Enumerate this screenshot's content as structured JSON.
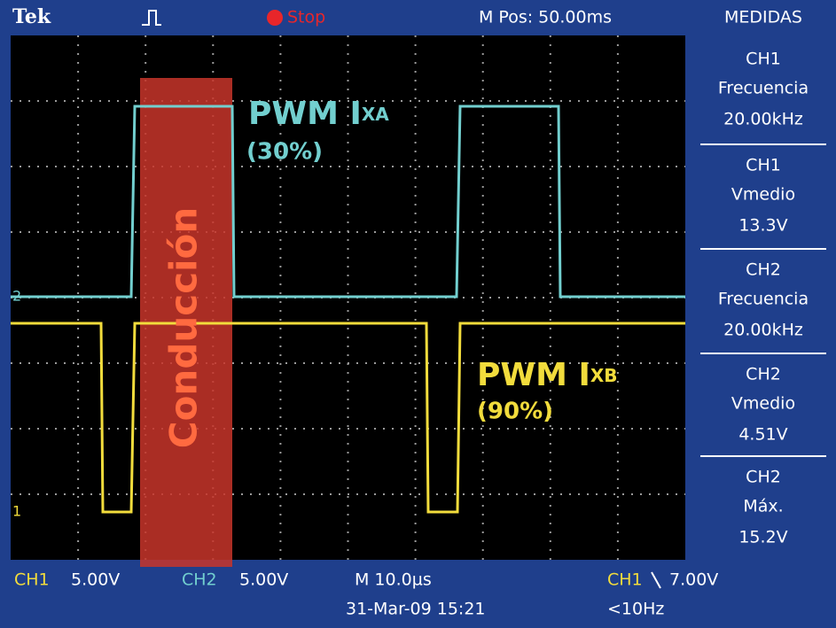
{
  "header": {
    "brand": "Tek",
    "state": "Stop",
    "position": "M Pos: 50.00ms",
    "menu": "MEDIDAS"
  },
  "measurements": [
    {
      "channel": "CH1",
      "name": "Frecuencia",
      "value": "20.00kHz"
    },
    {
      "channel": "CH1",
      "name": "Vmedio",
      "value": "13.3V"
    },
    {
      "channel": "CH2",
      "name": "Frecuencia",
      "value": "20.00kHz"
    },
    {
      "channel": "CH2",
      "name": "Vmedio",
      "value": "4.51V"
    },
    {
      "channel": "CH2",
      "name": "Máx.",
      "value": "15.2V"
    }
  ],
  "markers": {
    "ch2": "2",
    "ch1": "1"
  },
  "annotations": {
    "xa_label": "PWM I",
    "xa_sub": "XA",
    "xa_duty": "(30%)",
    "xb_label": "PWM I",
    "xb_sub": "XB",
    "xb_duty": "(90%)",
    "conduction": "Conducción"
  },
  "footer": {
    "ch1": "CH1",
    "ch1_scale": "5.00V",
    "ch2": "CH2",
    "ch2_scale": "5.00V",
    "timebase": "M 10.0µs",
    "trigger_source": "CH1",
    "trigger_level": "7.00V",
    "date": "31-Mar-09 15:21",
    "frequency": "<10Hz"
  }
}
